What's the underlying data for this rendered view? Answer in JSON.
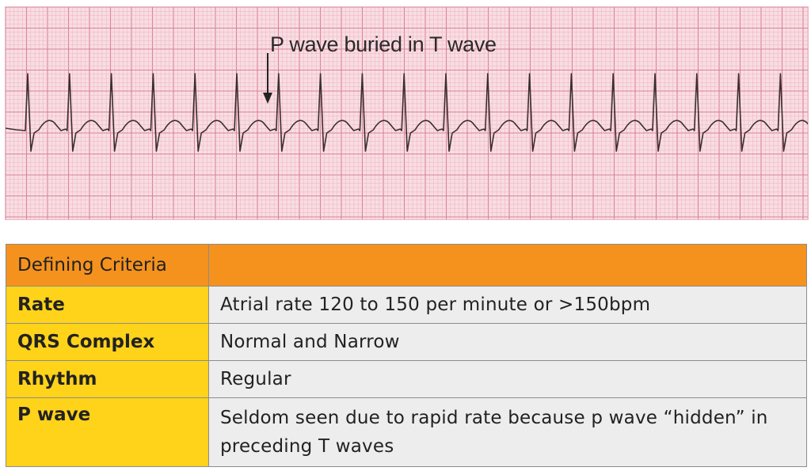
{
  "ecg": {
    "annotation": "P wave buried in T wave",
    "colors": {
      "background": "#f9dde3",
      "grid_minor": "#eab3c0",
      "grid_major": "#d98399",
      "trace": "#3a2e30"
    },
    "icons": [
      "down-arrow-icon"
    ]
  },
  "table": {
    "header": {
      "col1": "Defining Criteria",
      "col2": ""
    },
    "rows": [
      {
        "label": "Rate",
        "value": "Atrial rate 120 to 150 per minute or >150bpm"
      },
      {
        "label": "QRS Complex",
        "value": "Normal and Narrow"
      },
      {
        "label": "Rhythm",
        "value": "Regular"
      },
      {
        "label": "P wave",
        "value": "Seldom seen due to rapid rate because p wave “hidden” in preceding T waves"
      }
    ],
    "colors": {
      "header": "#f5921e",
      "label": "#ffd31a",
      "value": "#ededed"
    }
  }
}
